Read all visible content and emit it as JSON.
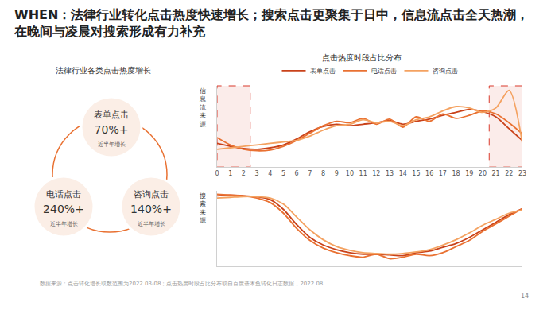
{
  "title": "WHEN：法律行业转化点击热度快速增长；搜索点击更聚集于日中，信息流点击全天热潮，在晚间与凌晨对搜索形成有力补充",
  "growth": {
    "title": "法律行业各类点击热度增长",
    "items": [
      {
        "label": "表单点击",
        "value": "70%+",
        "note": "近半年增长"
      },
      {
        "label": "电话点击",
        "value": "240%+",
        "note": "近半年增长"
      },
      {
        "label": "咨询点击",
        "value": "140%+",
        "note": "近半年增长"
      }
    ]
  },
  "chart_data": [
    {
      "type": "line",
      "title": "点击热度时段占比分布",
      "ylabel": "信息流来源",
      "legend": "top",
      "tick_labels": "x",
      "x": [
        0,
        1,
        2,
        3,
        4,
        5,
        6,
        7,
        8,
        9,
        10,
        11,
        12,
        13,
        14,
        15,
        16,
        17,
        18,
        19,
        20,
        21,
        22,
        23
      ],
      "xlim": [
        0,
        23
      ],
      "xticks": [
        0,
        1,
        2,
        3,
        4,
        5,
        6,
        7,
        8,
        9,
        10,
        11,
        12,
        13,
        14,
        15,
        16,
        17,
        18,
        19,
        20,
        21,
        22,
        23
      ],
      "ylim": [
        0,
        11
      ],
      "yticks": [],
      "series": [
        {
          "name": "表单点击",
          "color": "#c9421a",
          "values": [
            3.2,
            2.8,
            2.5,
            2.4,
            2.6,
            3.0,
            3.8,
            4.8,
            5.5,
            5.8,
            5.6,
            5.8,
            6.0,
            6.3,
            5.8,
            6.2,
            6.5,
            7.0,
            7.4,
            7.8,
            7.5,
            6.8,
            5.2,
            3.6
          ]
        },
        {
          "name": "电话点击",
          "color": "#e97132",
          "values": [
            4.0,
            3.0,
            2.4,
            2.2,
            2.3,
            2.8,
            3.6,
            4.6,
            5.6,
            6.2,
            6.0,
            6.6,
            5.8,
            6.5,
            5.4,
            6.8,
            6.2,
            7.2,
            6.6,
            7.0,
            7.6,
            7.2,
            6.0,
            4.5
          ]
        },
        {
          "name": "咨询点击",
          "color": "#f4a261",
          "values": [
            2.4,
            2.6,
            2.8,
            3.0,
            3.2,
            3.4,
            3.6,
            4.2,
            5.0,
            5.6,
            5.8,
            6.4,
            6.0,
            6.2,
            5.6,
            6.4,
            6.8,
            7.6,
            8.2,
            8.0,
            7.4,
            8.0,
            10.4,
            3.2
          ]
        }
      ]
    },
    {
      "type": "line",
      "ylabel": "搜索来源",
      "tick_labels": false,
      "x": [
        0,
        1,
        2,
        3,
        4,
        5,
        6,
        7,
        8,
        9,
        10,
        11,
        12,
        13,
        14,
        15,
        16,
        17,
        18,
        19,
        20,
        21,
        22,
        23
      ],
      "xlim": [
        0,
        23
      ],
      "xticks": [
        0,
        1,
        2,
        3,
        4,
        5,
        6,
        7,
        8,
        9,
        10,
        11,
        12,
        13,
        14,
        15,
        16,
        17,
        18,
        19,
        20,
        21,
        22,
        23
      ],
      "ylim": [
        0,
        10
      ],
      "yticks": [],
      "series": [
        {
          "name": "表单点击",
          "color": "#c9421a",
          "values": [
            9.3,
            9.4,
            9.3,
            9.2,
            8.8,
            7.5,
            5.5,
            3.8,
            2.8,
            2.2,
            1.8,
            1.6,
            1.6,
            1.5,
            1.4,
            1.8,
            2.0,
            2.5,
            3.0,
            3.8,
            4.8,
            5.8,
            6.8,
            7.6
          ]
        },
        {
          "name": "电话点击",
          "color": "#e97132",
          "values": [
            9.5,
            9.4,
            9.3,
            9.0,
            8.4,
            7.0,
            5.0,
            3.4,
            2.4,
            1.8,
            1.4,
            1.2,
            1.6,
            1.0,
            1.2,
            1.6,
            1.4,
            1.8,
            2.6,
            3.4,
            4.6,
            5.6,
            6.6,
            7.6
          ]
        },
        {
          "name": "咨询点击",
          "color": "#f4a261",
          "values": [
            9.0,
            9.1,
            9.2,
            9.2,
            9.0,
            8.2,
            6.5,
            4.8,
            3.5,
            2.6,
            2.1,
            1.8,
            1.7,
            1.6,
            1.7,
            1.9,
            2.2,
            2.8,
            3.5,
            4.4,
            5.4,
            6.2,
            7.0,
            7.4
          ]
        }
      ]
    }
  ],
  "source": "数据来源：点击转化增长取数范围为2022.03-08；点击热度时段占比分布取自百度基木鱼转化日志数据，2022.08",
  "page": "14"
}
